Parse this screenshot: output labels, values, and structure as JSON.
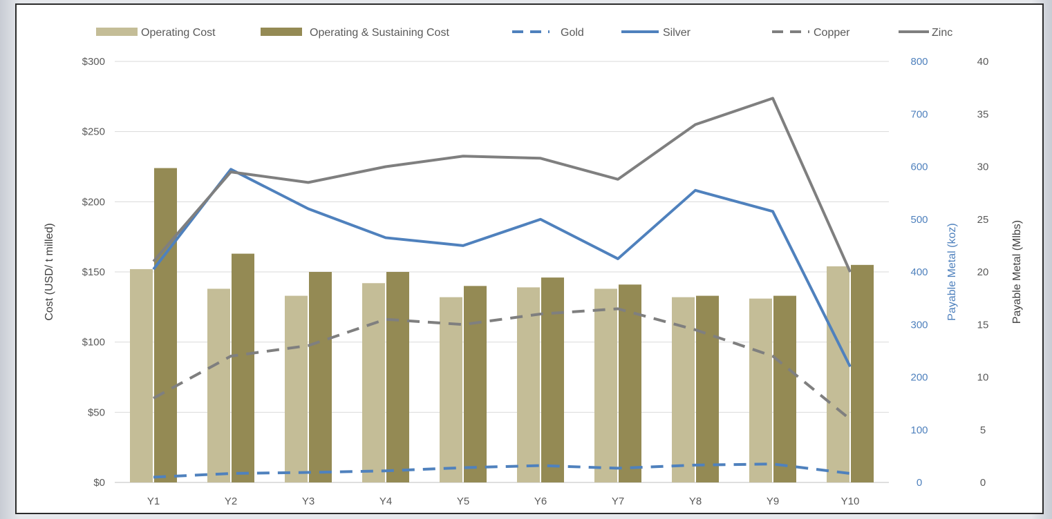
{
  "chart_data": {
    "type": "bar",
    "categories": [
      "Y1",
      "Y2",
      "Y3",
      "Y4",
      "Y5",
      "Y6",
      "Y7",
      "Y8",
      "Y9",
      "Y10"
    ],
    "y_left": {
      "label": "Cost (USD/ t milled)",
      "range": [
        0,
        300
      ],
      "ticks": [
        "$0",
        "$50",
        "$100",
        "$150",
        "$200",
        "$250",
        "$300"
      ],
      "tick_values": [
        0,
        50,
        100,
        150,
        200,
        250,
        300
      ]
    },
    "y_right_1": {
      "label": "Payable Metal (koz)",
      "range": [
        0,
        800
      ],
      "ticks": [
        "0",
        "100",
        "200",
        "300",
        "400",
        "500",
        "600",
        "700",
        "800"
      ],
      "tick_values": [
        0,
        100,
        200,
        300,
        400,
        500,
        600,
        700,
        800
      ],
      "color": "#4f81bd"
    },
    "y_right_2": {
      "label": "Payable Metal (Mlbs)",
      "range": [
        0,
        40
      ],
      "ticks": [
        "0",
        "5",
        "10",
        "15",
        "20",
        "25",
        "30",
        "35",
        "40"
      ],
      "tick_values": [
        0,
        5,
        10,
        15,
        20,
        25,
        30,
        35,
        40
      ]
    },
    "grid": true,
    "legend_position": "top",
    "bar_series": [
      {
        "name": "Operating Cost",
        "color": "#c4bd97",
        "values": [
          152,
          138,
          133,
          142,
          132,
          139,
          138,
          132,
          131,
          154
        ]
      },
      {
        "name": "Operating & Sustaining Cost",
        "color": "#948a54",
        "values": [
          224,
          163,
          150,
          150,
          140,
          146,
          141,
          133,
          133,
          155
        ]
      }
    ],
    "line_series": [
      {
        "name": "Gold",
        "axis": "koz",
        "color": "#4f81bd",
        "dash": true,
        "values": [
          10,
          17,
          19,
          22,
          28,
          32,
          27,
          33,
          35,
          17
        ]
      },
      {
        "name": "Silver",
        "axis": "koz",
        "color": "#4f81bd",
        "dash": false,
        "values": [
          405,
          595,
          520,
          465,
          450,
          500,
          425,
          555,
          515,
          220
        ]
      },
      {
        "name": "Copper",
        "axis": "Mlbs",
        "color": "#7f7f7f",
        "dash": true,
        "values": [
          8,
          12,
          13,
          15.5,
          15,
          16,
          16.5,
          14.5,
          12,
          6
        ]
      },
      {
        "name": "Zinc",
        "axis": "Mlbs",
        "color": "#7f7f7f",
        "dash": false,
        "values": [
          21,
          29.5,
          28.5,
          30,
          31,
          30.8,
          28.8,
          34,
          36.5,
          20
        ]
      }
    ]
  }
}
